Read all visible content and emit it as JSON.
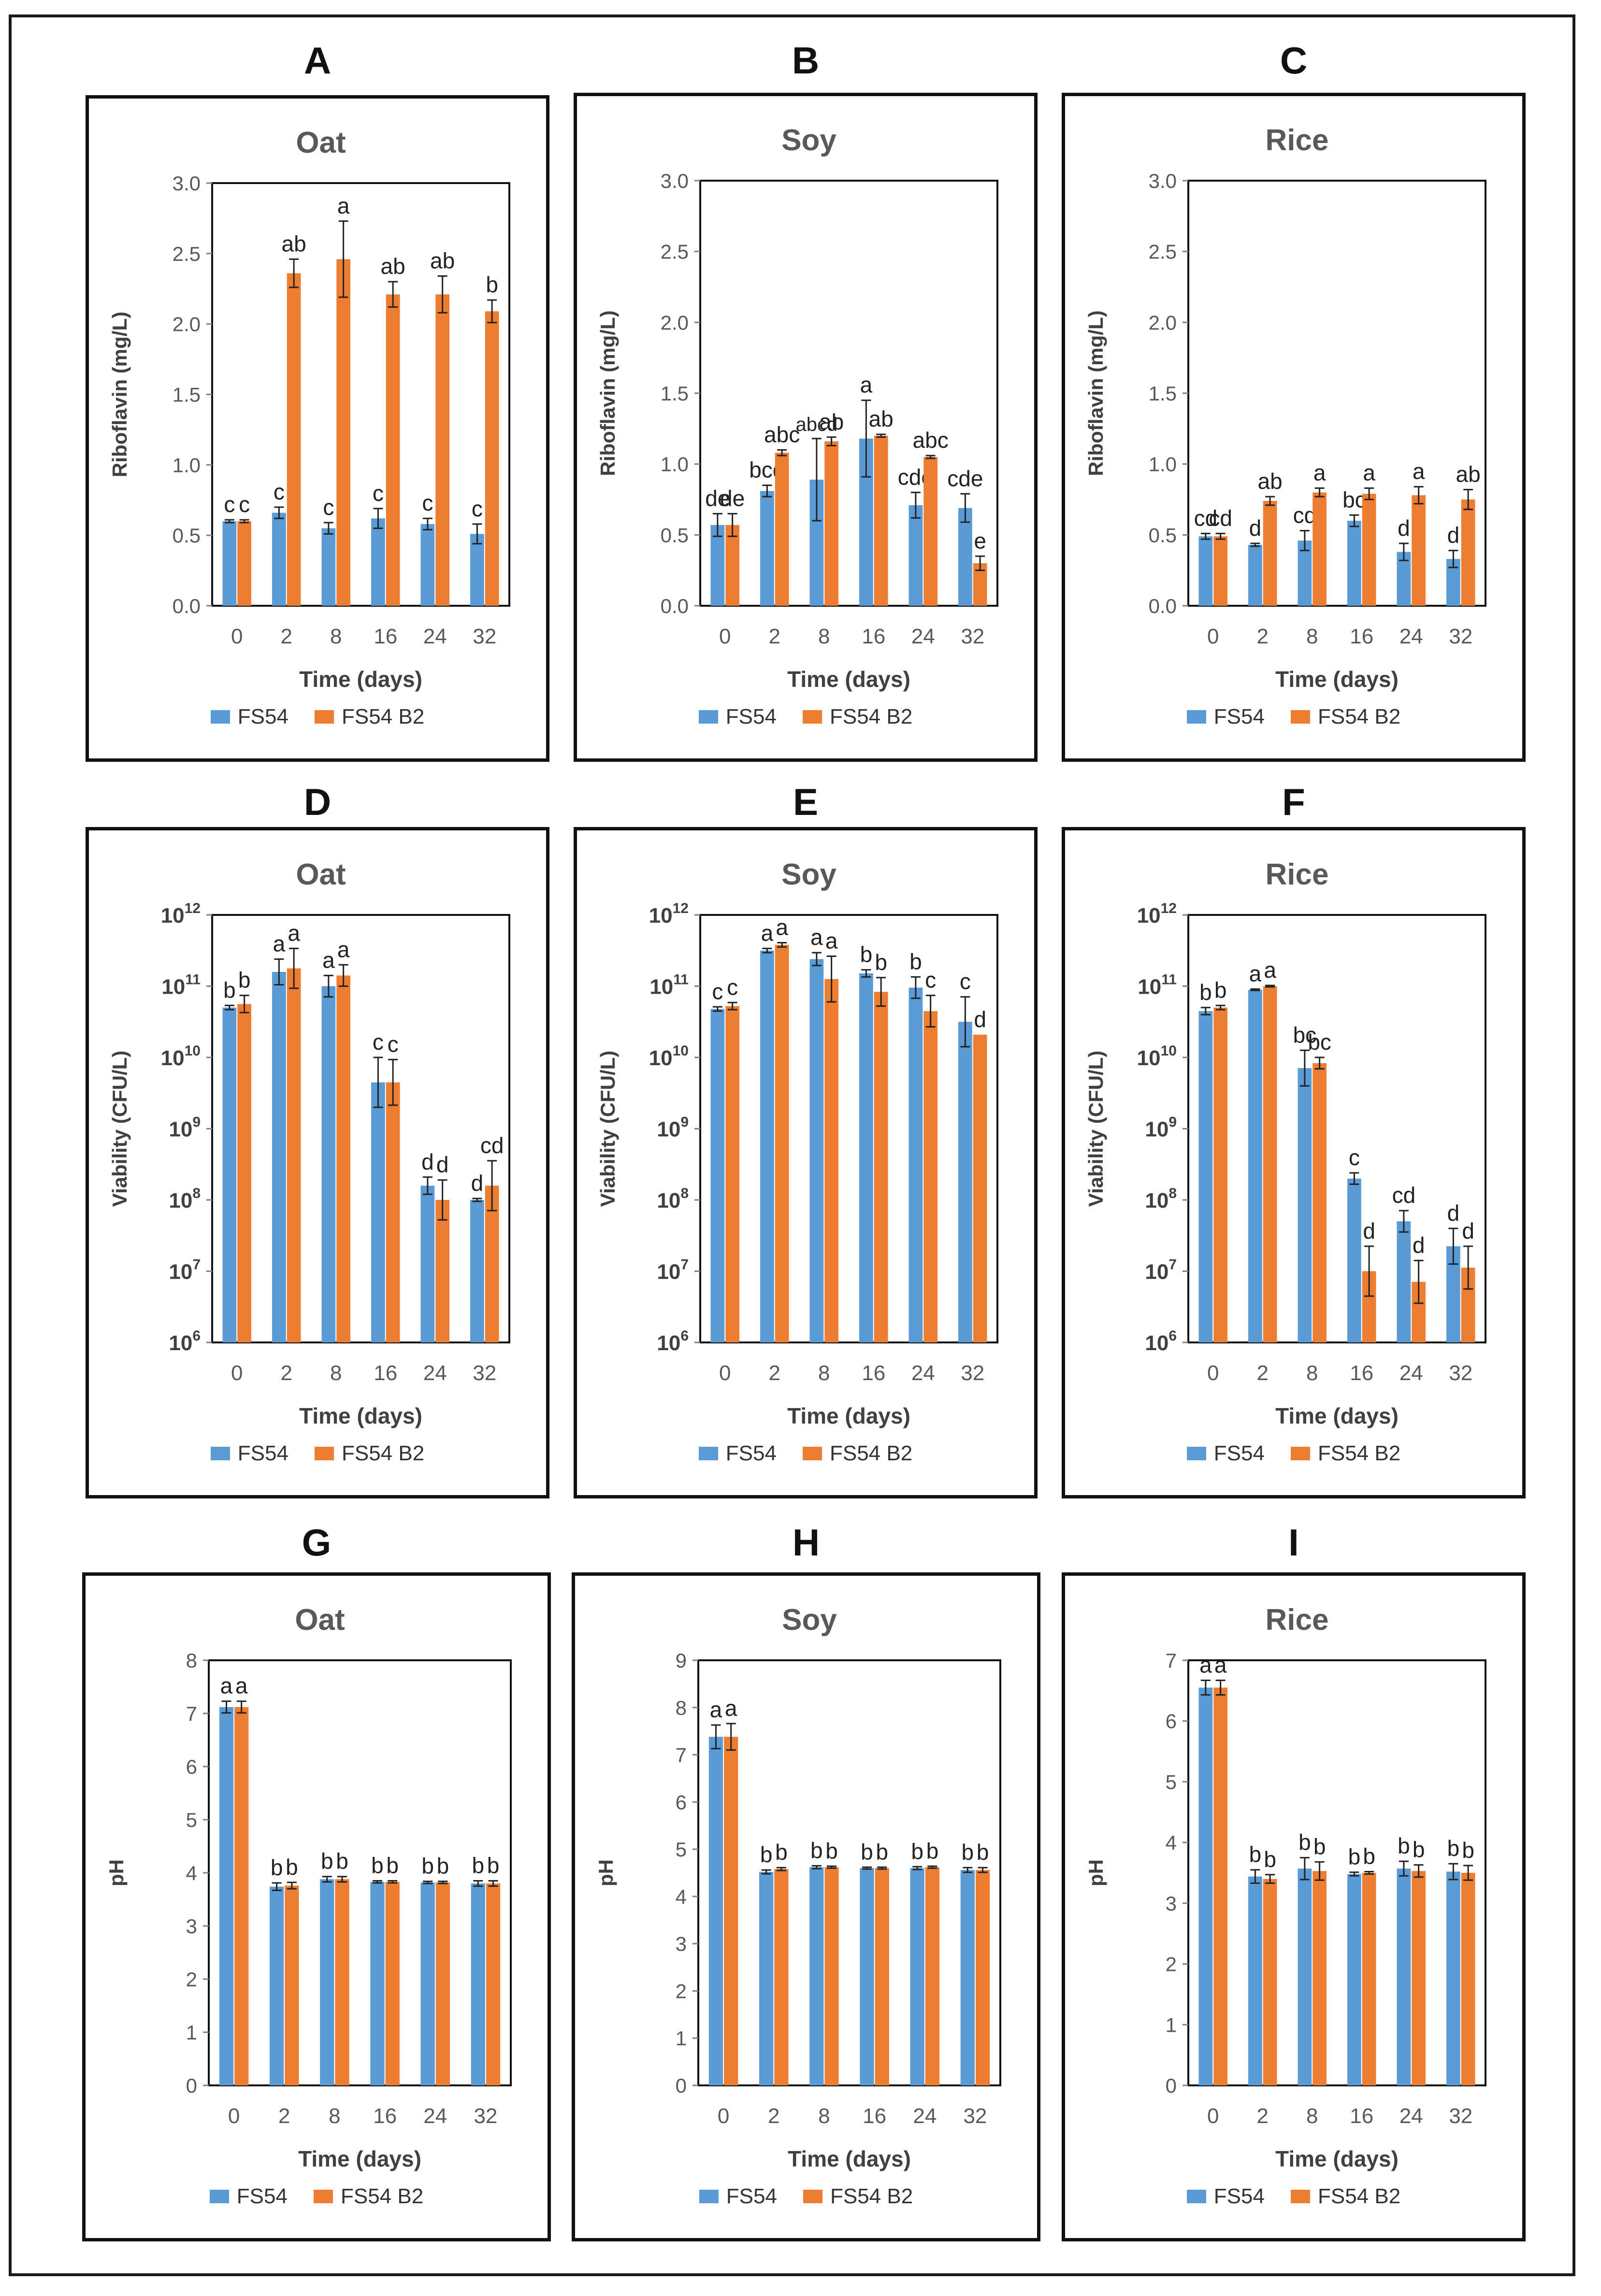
{
  "colors": {
    "fs54": "#5b9bd5",
    "fs54b2": "#ed7d31",
    "axis": "#808080",
    "text": "#595959",
    "bold_text": "#404040"
  },
  "legend": {
    "series_1": "FS54",
    "series_2": "FS54 B2"
  },
  "chart_data": [
    {
      "id": "A",
      "letter": "A",
      "type": "bar",
      "title": "Oat",
      "xlabel": "Time (days)",
      "ylabel": "Riboflavin  (mg/L)",
      "scale": "linear",
      "ylim": [
        0,
        3.0
      ],
      "yticks": [
        "0.0",
        "0.5",
        "1.0",
        "1.5",
        "2.0",
        "2.5",
        "3.0"
      ],
      "categories": [
        "0",
        "2",
        "8",
        "16",
        "24",
        "32"
      ],
      "series": [
        {
          "name": "FS54",
          "values": [
            0.6,
            0.66,
            0.55,
            0.62,
            0.58,
            0.51
          ],
          "errors": [
            0.01,
            0.04,
            0.04,
            0.07,
            0.04,
            0.07
          ],
          "labels": [
            "c",
            "c",
            "c",
            "c",
            "c",
            "c"
          ]
        },
        {
          "name": "FS54 B2",
          "values": [
            0.6,
            2.36,
            2.46,
            2.21,
            2.21,
            2.09
          ],
          "errors": [
            0.01,
            0.1,
            0.27,
            0.09,
            0.13,
            0.08
          ],
          "labels": [
            "c",
            "ab",
            "a",
            "ab",
            "ab",
            "b"
          ]
        }
      ]
    },
    {
      "id": "B",
      "letter": "B",
      "type": "bar",
      "title": "Soy",
      "xlabel": "Time (days)",
      "ylabel": "Riboflavin  (mg/L)",
      "scale": "linear",
      "ylim": [
        0,
        3.0
      ],
      "yticks": [
        "0.0",
        "0.5",
        "1.0",
        "1.5",
        "2.0",
        "2.5",
        "3.0"
      ],
      "categories": [
        "0",
        "2",
        "8",
        "16",
        "24",
        "32"
      ],
      "series": [
        {
          "name": "FS54",
          "values": [
            0.57,
            0.81,
            0.89,
            1.18,
            0.71,
            0.69
          ],
          "errors": [
            0.08,
            0.04,
            0.29,
            0.27,
            0.09,
            0.1
          ],
          "labels": [
            "de",
            "bcd",
            "abcd",
            "a",
            "cde",
            "cde"
          ]
        },
        {
          "name": "FS54 B2",
          "values": [
            0.57,
            1.08,
            1.16,
            1.2,
            1.05,
            0.3
          ],
          "errors": [
            0.08,
            0.02,
            0.03,
            0.01,
            0.01,
            0.05
          ],
          "labels": [
            "de",
            "abc",
            "ab",
            "ab",
            "abc",
            "e"
          ]
        }
      ]
    },
    {
      "id": "C",
      "letter": "C",
      "type": "bar",
      "title": "Rice",
      "xlabel": "Time (days)",
      "ylabel": "Riboflavin  (mg/L)",
      "scale": "linear",
      "ylim": [
        0,
        3.0
      ],
      "yticks": [
        "0.0",
        "0.5",
        "1.0",
        "1.5",
        "2.0",
        "2.5",
        "3.0"
      ],
      "categories": [
        "0",
        "2",
        "8",
        "16",
        "24",
        "32"
      ],
      "series": [
        {
          "name": "FS54",
          "values": [
            0.49,
            0.43,
            0.46,
            0.6,
            0.38,
            0.33
          ],
          "errors": [
            0.02,
            0.01,
            0.07,
            0.04,
            0.06,
            0.06
          ],
          "labels": [
            "cd",
            "d",
            "cd",
            "bc",
            "d",
            "d"
          ]
        },
        {
          "name": "FS54 B2",
          "values": [
            0.49,
            0.74,
            0.8,
            0.79,
            0.78,
            0.75
          ],
          "errors": [
            0.02,
            0.03,
            0.03,
            0.04,
            0.06,
            0.07
          ],
          "labels": [
            "cd",
            "ab",
            "a",
            "a",
            "a",
            "ab"
          ]
        }
      ]
    },
    {
      "id": "D",
      "letter": "D",
      "type": "bar",
      "title": "Oat",
      "xlabel": "Time (days)",
      "ylabel": "Viability (CFU/L)",
      "scale": "log",
      "ylim": [
        6,
        12
      ],
      "yticks_base": "10",
      "yticks_exp": [
        "6",
        "7",
        "8",
        "9",
        "10",
        "11",
        "12"
      ],
      "categories": [
        "0",
        "2",
        "8",
        "16",
        "24",
        "32"
      ],
      "series": [
        {
          "name": "FS54",
          "values": [
            10.7,
            11.2,
            11.0,
            9.65,
            8.2,
            8.0
          ],
          "errors": [
            0.03,
            0.18,
            0.15,
            0.35,
            0.12,
            0.02
          ],
          "labels": [
            "b",
            "a",
            "a",
            "c",
            "d",
            "d"
          ]
        },
        {
          "name": "FS54 B2",
          "values": [
            10.75,
            11.25,
            11.15,
            9.65,
            8.0,
            8.2
          ],
          "errors": [
            0.12,
            0.28,
            0.15,
            0.32,
            0.28,
            0.35
          ],
          "labels": [
            "b",
            "a",
            "a",
            "c",
            "d",
            "cd"
          ]
        }
      ]
    },
    {
      "id": "E",
      "letter": "E",
      "type": "bar",
      "title": "Soy",
      "xlabel": "Time (days)",
      "ylabel": "Viability (CFU/L)",
      "scale": "log",
      "ylim": [
        6,
        12
      ],
      "yticks_base": "10",
      "yticks_exp": [
        "6",
        "7",
        "8",
        "9",
        "10",
        "11",
        "12"
      ],
      "categories": [
        "0",
        "2",
        "8",
        "16",
        "24",
        "32"
      ],
      "series": [
        {
          "name": "FS54",
          "values": [
            10.68,
            11.5,
            11.38,
            11.18,
            10.98,
            10.5
          ],
          "errors": [
            0.03,
            0.03,
            0.09,
            0.05,
            0.15,
            0.35
          ],
          "labels": [
            "c",
            "a",
            "a",
            "b",
            "b",
            "c"
          ]
        },
        {
          "name": "FS54 B2",
          "values": [
            10.72,
            11.58,
            11.1,
            10.92,
            10.65,
            10.32
          ],
          "errors": [
            0.05,
            0.03,
            0.32,
            0.2,
            0.22,
            0.0
          ],
          "labels": [
            "c",
            "a",
            "a",
            "b",
            "c",
            "d"
          ]
        }
      ]
    },
    {
      "id": "F",
      "letter": "F",
      "type": "bar",
      "title": "Rice",
      "xlabel": "Time (days)",
      "ylabel": "Viability (CFU/L)",
      "scale": "log",
      "ylim": [
        6,
        12
      ],
      "yticks_base": "10",
      "yticks_exp": [
        "6",
        "7",
        "8",
        "9",
        "10",
        "11",
        "12"
      ],
      "categories": [
        "0",
        "2",
        "8",
        "16",
        "24",
        "32"
      ],
      "series": [
        {
          "name": "FS54",
          "values": [
            10.65,
            10.95,
            9.85,
            8.3,
            7.7,
            7.35
          ],
          "errors": [
            0.05,
            0.01,
            0.25,
            0.08,
            0.15,
            0.25
          ],
          "labels": [
            "b",
            "a",
            "bc",
            "c",
            "cd",
            "d"
          ]
        },
        {
          "name": "FS54 B2",
          "values": [
            10.7,
            11.0,
            9.92,
            7.0,
            6.85,
            7.05
          ],
          "errors": [
            0.03,
            0.01,
            0.08,
            0.35,
            0.3,
            0.3
          ],
          "labels": [
            "b",
            "a",
            "bc",
            "d",
            "d",
            "d"
          ]
        }
      ]
    },
    {
      "id": "G",
      "letter": "G",
      "type": "bar",
      "title": "Oat",
      "xlabel": "Time (days)",
      "ylabel": "pH",
      "scale": "linear",
      "ylim": [
        0,
        8
      ],
      "yticks": [
        "0",
        "1",
        "2",
        "3",
        "4",
        "5",
        "6",
        "7",
        "8"
      ],
      "categories": [
        "0",
        "2",
        "8",
        "16",
        "24",
        "32"
      ],
      "series": [
        {
          "name": "FS54",
          "values": [
            7.12,
            3.74,
            3.88,
            3.83,
            3.82,
            3.8
          ],
          "errors": [
            0.11,
            0.07,
            0.05,
            0.02,
            0.02,
            0.05
          ],
          "labels": [
            "a",
            "b",
            "b",
            "b",
            "b",
            "b"
          ]
        },
        {
          "name": "FS54 B2",
          "values": [
            7.12,
            3.76,
            3.88,
            3.83,
            3.82,
            3.8
          ],
          "errors": [
            0.11,
            0.06,
            0.05,
            0.02,
            0.02,
            0.05
          ],
          "labels": [
            "a",
            "b",
            "b",
            "b",
            "b",
            "b"
          ]
        }
      ]
    },
    {
      "id": "H",
      "letter": "H",
      "type": "bar",
      "title": "Soy",
      "xlabel": "Time (days)",
      "ylabel": "pH",
      "scale": "linear",
      "ylim": [
        0,
        9
      ],
      "yticks": [
        "0",
        "1",
        "2",
        "3",
        "4",
        "5",
        "6",
        "7",
        "8",
        "9"
      ],
      "categories": [
        "0",
        "2",
        "8",
        "16",
        "24",
        "32"
      ],
      "series": [
        {
          "name": "FS54",
          "values": [
            7.38,
            4.52,
            4.62,
            4.6,
            4.6,
            4.56
          ],
          "errors": [
            0.25,
            0.04,
            0.03,
            0.02,
            0.03,
            0.05
          ],
          "labels": [
            "a",
            "b",
            "b",
            "b",
            "b",
            "b"
          ]
        },
        {
          "name": "FS54 B2",
          "values": [
            7.38,
            4.58,
            4.62,
            4.6,
            4.62,
            4.56
          ],
          "errors": [
            0.28,
            0.03,
            0.02,
            0.02,
            0.02,
            0.05
          ],
          "labels": [
            "a",
            "b",
            "b",
            "b",
            "b",
            "b"
          ]
        }
      ]
    },
    {
      "id": "I",
      "letter": "I",
      "type": "bar",
      "title": "Rice",
      "xlabel": "Time (days)",
      "ylabel": "pH",
      "scale": "linear",
      "ylim": [
        0,
        7
      ],
      "yticks": [
        "0",
        "1",
        "2",
        "3",
        "4",
        "5",
        "6",
        "7"
      ],
      "categories": [
        "0",
        "2",
        "8",
        "16",
        "24",
        "32"
      ],
      "series": [
        {
          "name": "FS54",
          "values": [
            6.55,
            3.44,
            3.57,
            3.48,
            3.57,
            3.52
          ],
          "errors": [
            0.12,
            0.11,
            0.18,
            0.03,
            0.12,
            0.13
          ],
          "labels": [
            "a",
            "b",
            "b",
            "b",
            "b",
            "b"
          ]
        },
        {
          "name": "FS54 B2",
          "values": [
            6.55,
            3.4,
            3.53,
            3.5,
            3.53,
            3.5
          ],
          "errors": [
            0.12,
            0.07,
            0.15,
            0.02,
            0.1,
            0.12
          ],
          "labels": [
            "a",
            "b",
            "b",
            "b",
            "b",
            "b"
          ]
        }
      ]
    }
  ]
}
